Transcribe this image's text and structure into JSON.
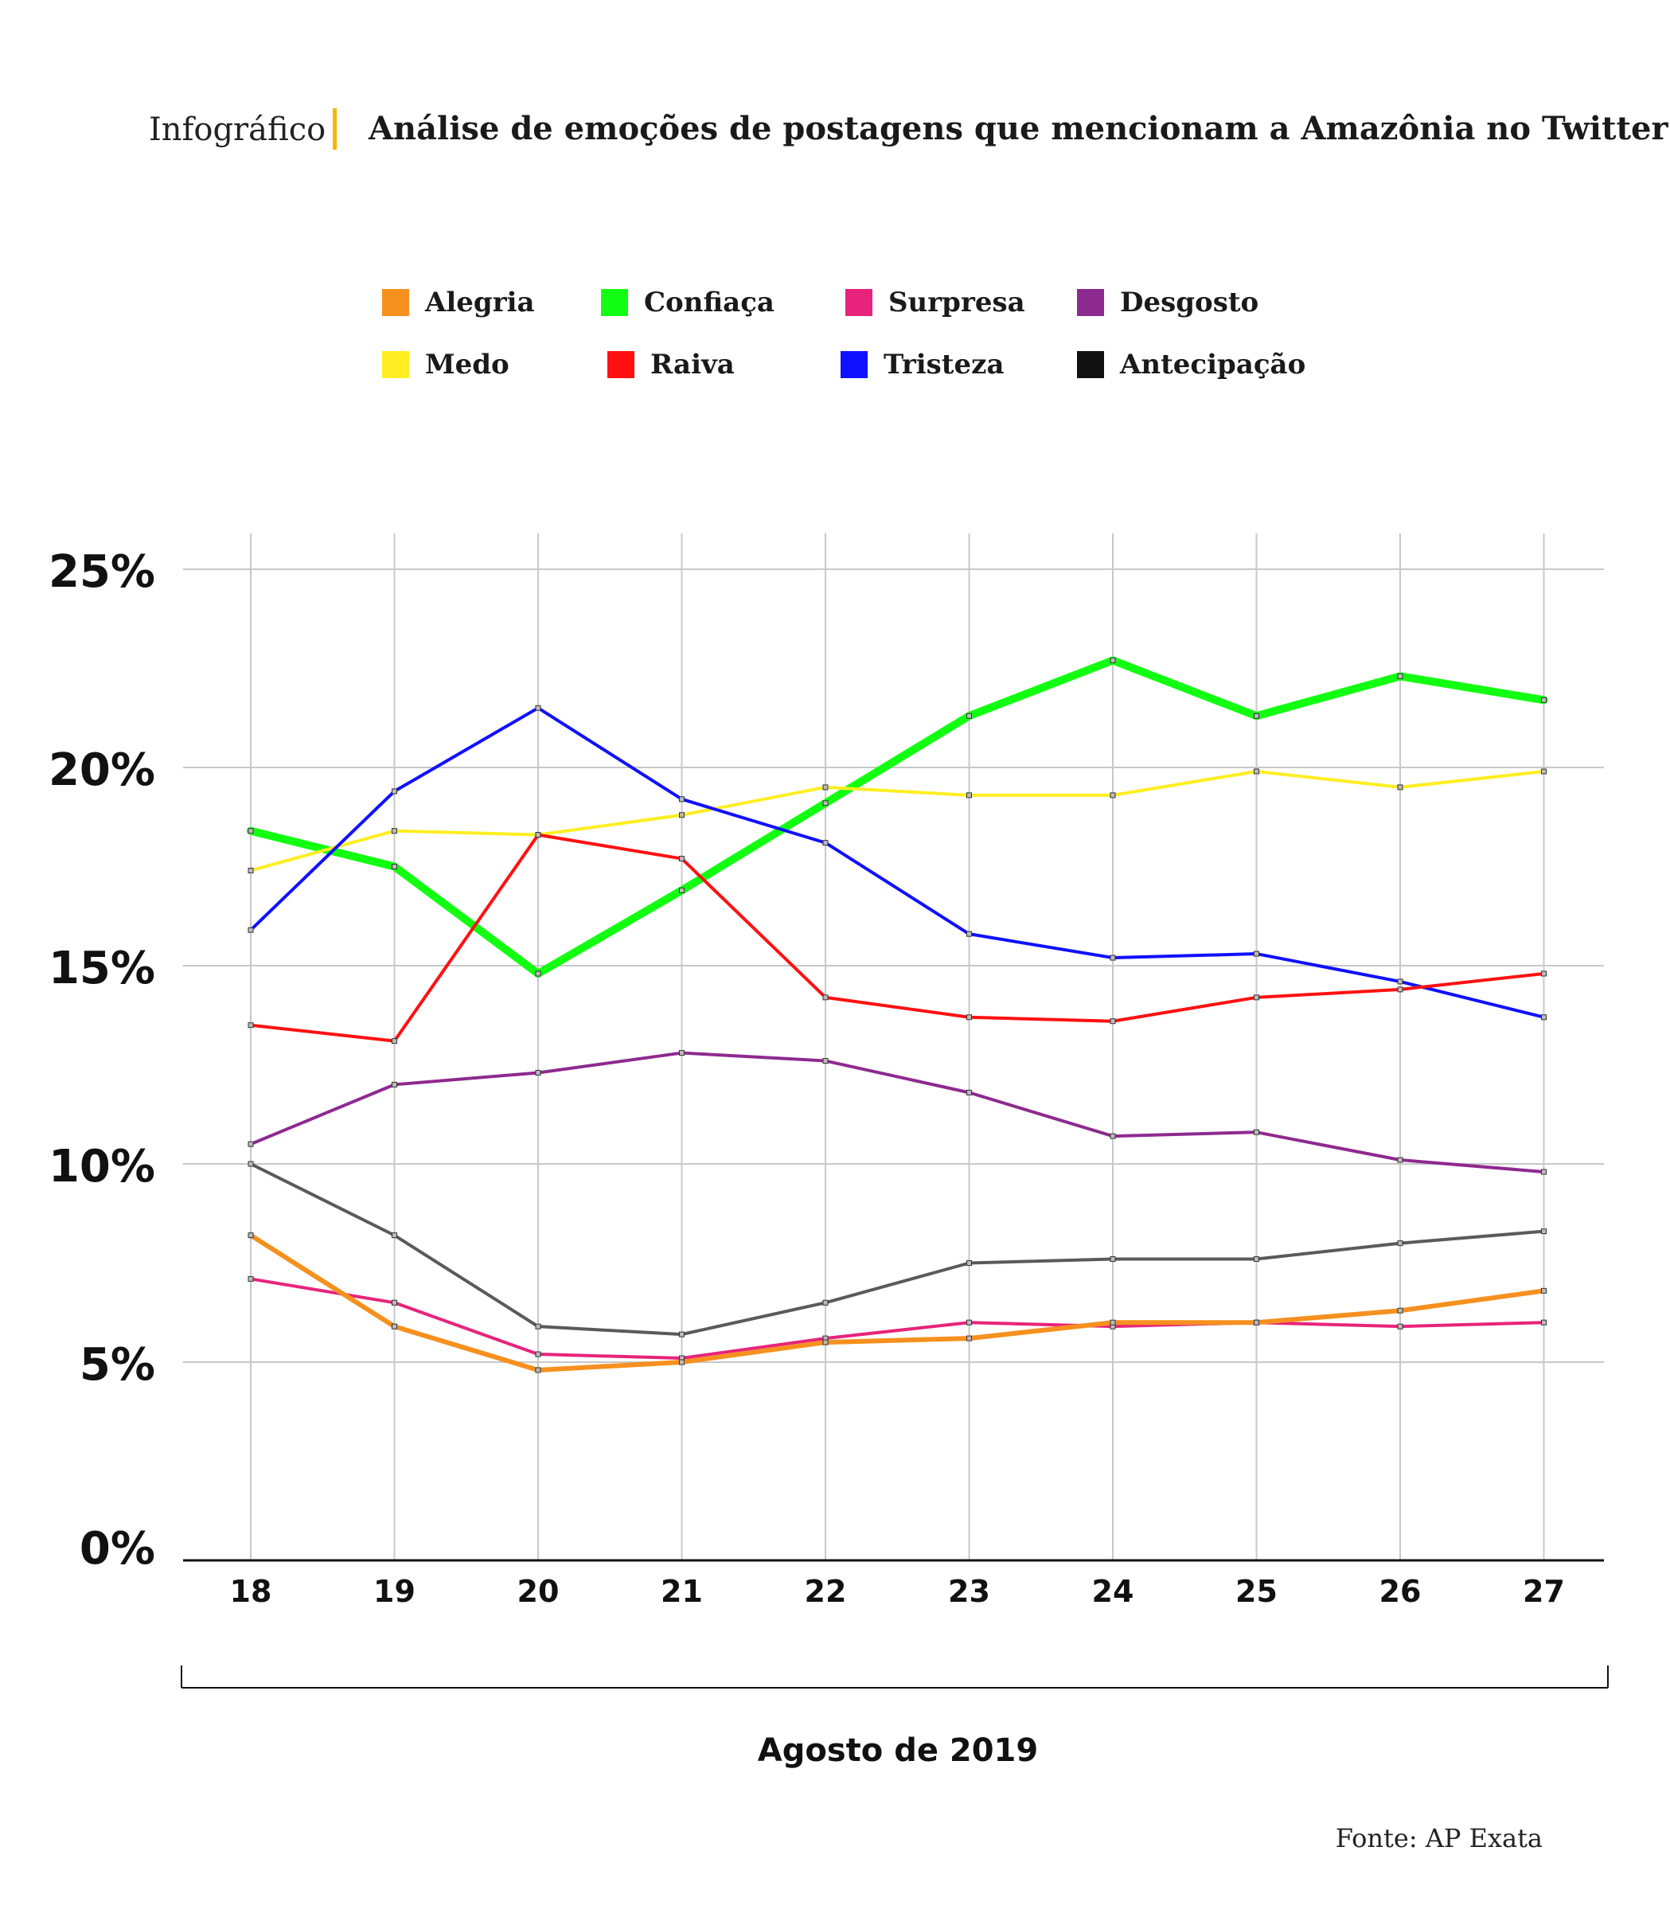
{
  "header": {
    "kicker": "Infográfico",
    "title": "Análise de emoções de postagens que mencionam a Amazônia no Twitter"
  },
  "legend": [
    {
      "label": "Alegria",
      "color": "#f6901e"
    },
    {
      "label": "Confiaça",
      "color": "#12ff12"
    },
    {
      "label": "Surpresa",
      "color": "#e8237b"
    },
    {
      "label": "Desgosto",
      "color": "#8e2a8f"
    },
    {
      "label": "Medo",
      "color": "#ffee22"
    },
    {
      "label": "Raiva",
      "color": "#ff1010"
    },
    {
      "label": "Tristeza",
      "color": "#1010ff"
    },
    {
      "label": "Antecipação",
      "color": "#111111"
    }
  ],
  "chart_data": {
    "type": "line",
    "x": [
      "18",
      "19",
      "20",
      "21",
      "22",
      "23",
      "24",
      "25",
      "26",
      "27"
    ],
    "xlabel": "Agosto de 2019",
    "ylabel": "",
    "ylim": [
      0,
      25
    ],
    "yticks": [
      "0%",
      "5%",
      "10%",
      "15%",
      "20%",
      "25%"
    ],
    "grid": true,
    "series": [
      {
        "name": "Confiaça",
        "color": "#12ff12",
        "width": 10,
        "values": [
          18.4,
          17.5,
          14.8,
          16.9,
          19.1,
          21.3,
          22.7,
          21.3,
          22.3,
          21.7
        ]
      },
      {
        "name": "Medo",
        "color": "#ffee22",
        "width": 4,
        "values": [
          17.4,
          18.4,
          18.3,
          18.8,
          19.5,
          19.3,
          19.3,
          19.9,
          19.5,
          19.9
        ]
      },
      {
        "name": "Tristeza",
        "color": "#1010ff",
        "width": 4,
        "values": [
          15.9,
          19.4,
          21.5,
          19.2,
          18.1,
          15.8,
          15.2,
          15.3,
          14.6,
          13.7
        ]
      },
      {
        "name": "Raiva",
        "color": "#ff1010",
        "width": 4,
        "values": [
          13.5,
          13.1,
          18.3,
          17.7,
          14.2,
          13.7,
          13.6,
          14.2,
          14.4,
          14.8
        ]
      },
      {
        "name": "Desgosto",
        "color": "#8e2a8f",
        "width": 4,
        "values": [
          10.5,
          12.0,
          12.3,
          12.8,
          12.6,
          11.8,
          10.7,
          10.8,
          10.1,
          9.8
        ]
      },
      {
        "name": "Antecipação",
        "color": "#5a5a5a",
        "width": 4,
        "values": [
          10.0,
          8.2,
          5.9,
          5.7,
          6.5,
          7.5,
          7.6,
          7.6,
          8.0,
          8.3
        ]
      },
      {
        "name": "Surpresa",
        "color": "#e8237b",
        "width": 4,
        "values": [
          7.1,
          6.5,
          5.2,
          5.1,
          5.6,
          6.0,
          5.9,
          6.0,
          5.9,
          6.0
        ]
      },
      {
        "name": "Alegria",
        "color": "#f6901e",
        "width": 6,
        "values": [
          8.2,
          5.9,
          4.8,
          5.0,
          5.5,
          5.6,
          6.0,
          6.0,
          6.3,
          6.8
        ]
      }
    ]
  },
  "footer": {
    "source": "Fonte: AP Exata"
  }
}
